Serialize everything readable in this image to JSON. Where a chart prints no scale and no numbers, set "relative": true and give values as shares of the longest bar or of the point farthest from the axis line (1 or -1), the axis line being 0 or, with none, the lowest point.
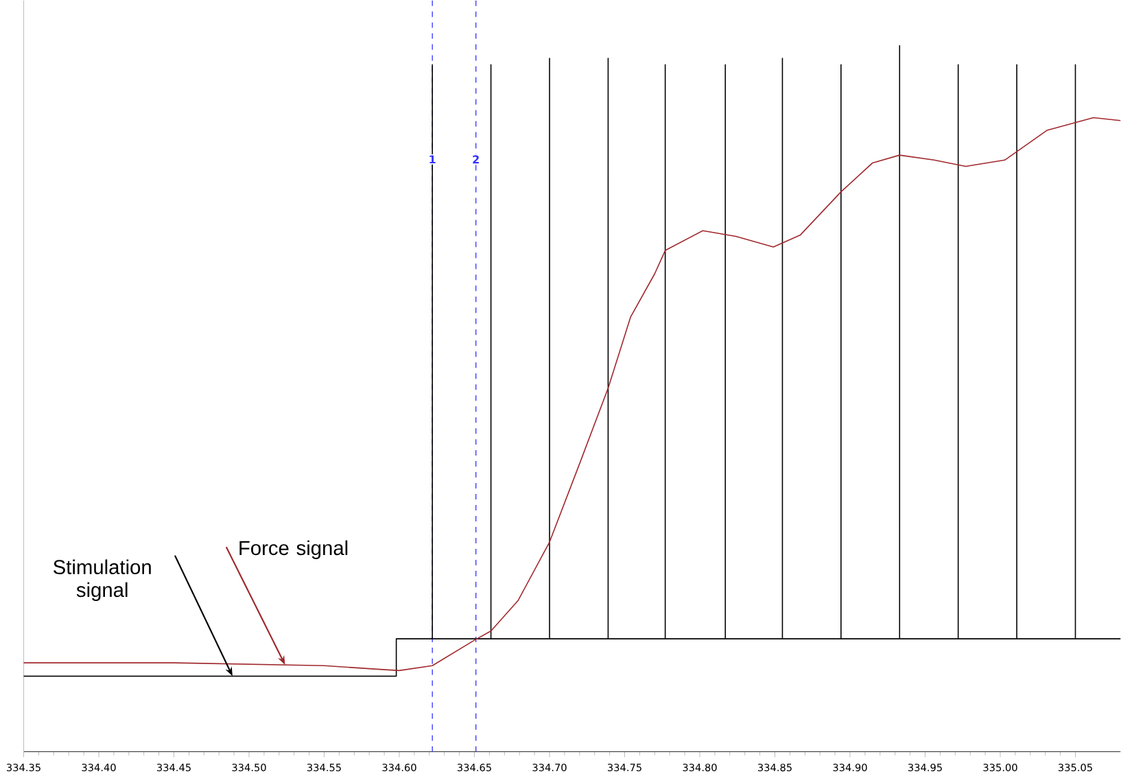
{
  "chart_data": {
    "type": "line",
    "relative": true,
    "grid": false,
    "marker": "none",
    "tick_labels": "x",
    "xlim": [
      334.35,
      335.08
    ],
    "xticks": [
      {
        "value": 334.35,
        "label": "334.35"
      },
      {
        "value": 334.4,
        "label": "334.40"
      },
      {
        "value": 334.45,
        "label": "334.45"
      },
      {
        "value": 334.5,
        "label": "334.50"
      },
      {
        "value": 334.55,
        "label": "334.55"
      },
      {
        "value": 334.6,
        "label": "334.60"
      },
      {
        "value": 334.65,
        "label": "334.65"
      },
      {
        "value": 334.7,
        "label": "334.70"
      },
      {
        "value": 334.75,
        "label": "334.75"
      },
      {
        "value": 334.8,
        "label": "334.80"
      },
      {
        "value": 334.85,
        "label": "334.85"
      },
      {
        "value": 334.9,
        "label": "334.90"
      },
      {
        "value": 334.95,
        "label": "334.95"
      },
      {
        "value": 335.0,
        "label": "335.00"
      },
      {
        "value": 335.05,
        "label": "335.05"
      }
    ],
    "series": [
      {
        "color": "#000000",
        "x": [
          334.35,
          334.598,
          334.598,
          334.622,
          334.622,
          334.622,
          334.661,
          334.661,
          334.661,
          334.7,
          334.7,
          334.7,
          334.739,
          334.739,
          334.739,
          334.777,
          334.777,
          334.777,
          334.817,
          334.817,
          334.817,
          334.855,
          334.855,
          334.855,
          334.894,
          334.894,
          334.894,
          334.933,
          334.933,
          334.933,
          334.972,
          334.972,
          334.972,
          335.011,
          335.011,
          335.011,
          335.05,
          335.05,
          335.05,
          335.08
        ],
        "values": [
          0.107,
          0.107,
          0.16,
          0.16,
          0.973,
          0.16,
          0.16,
          0.973,
          0.16,
          0.16,
          0.982,
          0.16,
          0.16,
          0.982,
          0.16,
          0.16,
          0.973,
          0.16,
          0.16,
          0.973,
          0.16,
          0.16,
          0.982,
          0.16,
          0.16,
          0.973,
          0.16,
          0.16,
          1.0,
          0.16,
          0.16,
          0.973,
          0.16,
          0.16,
          0.973,
          0.16,
          0.16,
          0.973,
          0.16,
          0.16
        ]
      },
      {
        "color": "#a0282c",
        "x": [
          334.35,
          334.45,
          334.55,
          334.585,
          334.6,
          334.622,
          334.65,
          334.661,
          334.679,
          334.7,
          334.72,
          334.739,
          334.754,
          334.77,
          334.777,
          334.802,
          334.824,
          334.849,
          334.867,
          334.894,
          334.915,
          334.933,
          334.956,
          334.977,
          335.003,
          335.031,
          335.062,
          335.08
        ],
        "values": [
          0.126,
          0.126,
          0.122,
          0.117,
          0.115,
          0.122,
          0.158,
          0.171,
          0.214,
          0.297,
          0.408,
          0.515,
          0.616,
          0.677,
          0.71,
          0.738,
          0.73,
          0.715,
          0.732,
          0.793,
          0.834,
          0.845,
          0.838,
          0.829,
          0.838,
          0.88,
          0.898,
          0.894
        ]
      }
    ],
    "ref_lines": [
      {
        "axis": "x",
        "value": 334.622,
        "color": "#3333ff",
        "line_style": "dashed"
      },
      {
        "axis": "x",
        "value": 334.651,
        "color": "#3333ff",
        "line_style": "dashed"
      }
    ],
    "annotations": [
      {
        "text": "Stimulation signal",
        "x": 334.489,
        "y": 0.107
      },
      {
        "text": "Force signal",
        "x": 334.524,
        "y": 0.123
      },
      {
        "text": "1",
        "x": 334.622,
        "y": 0.839
      },
      {
        "text": "2",
        "x": 334.651,
        "y": 0.839
      }
    ]
  }
}
